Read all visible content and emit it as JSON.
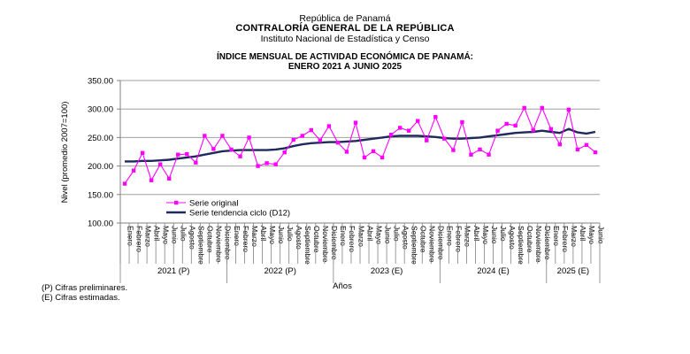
{
  "header": {
    "line1": "República de Panamá",
    "line2": "CONTRALORÍA GENERAL DE LA REPÚBLICA",
    "line3": "Instituto Nacional de Estadística y Censo",
    "title1": "ÍNDICE MENSUAL DE ACTIVIDAD ECONÓMICA DE PANAMÁ:",
    "title2": "ENERO 2021 A JUNIO 2025"
  },
  "notes": {
    "p": "(P) Cifras preliminares.",
    "e": "(E) Cifras estimadas."
  },
  "colors": {
    "original": "#FF00FF",
    "trend": "#1F2A5C",
    "grid": "#A0A0A0",
    "axis": "#808080"
  },
  "chart_data": {
    "type": "line",
    "title": "ÍNDICE MENSUAL DE ACTIVIDAD ECONÓMICA DE PANAMÁ: ENERO 2021 A JUNIO 2025",
    "xlabel": "Años",
    "ylabel": "Nivel (promedio 2007=100)",
    "ylim": [
      100,
      350
    ],
    "yticks": [
      "100.00",
      "150.00",
      "200.00",
      "250.00",
      "300.00",
      "350.00"
    ],
    "grid": true,
    "legend_position": "inside-lower-left",
    "month_labels": [
      "Enero",
      "Febrero",
      "Marzo",
      "Abril",
      "Mayo",
      "Junio",
      "Julio",
      "Agosto",
      "Septiembre",
      "Octubre",
      "Noviembre",
      "Diciembre"
    ],
    "year_groups": [
      {
        "label": "2021 (P)",
        "months": 12
      },
      {
        "label": "2022 (P)",
        "months": 12
      },
      {
        "label": "2023 (E)",
        "months": 12
      },
      {
        "label": "2024 (E)",
        "months": 12
      },
      {
        "label": "2025 (E)",
        "months": 6
      }
    ],
    "series": [
      {
        "name": "Serie original",
        "values": [
          169,
          192,
          223,
          175,
          203,
          178,
          220,
          221,
          206,
          253,
          230,
          253,
          229,
          217,
          250,
          200,
          205,
          203,
          224,
          246,
          253,
          263,
          245,
          270,
          241,
          225,
          276,
          215,
          226,
          215,
          255,
          267,
          262,
          279,
          245,
          286,
          248,
          228,
          277,
          220,
          229,
          220,
          262,
          274,
          271,
          302,
          263,
          302,
          265,
          238,
          299,
          229,
          237,
          224
        ]
      },
      {
        "name": "Serie tendencia ciclo (D12)",
        "values": [
          208,
          208,
          209,
          209,
          210,
          211,
          213,
          215,
          217,
          220,
          223,
          226,
          227,
          228,
          228,
          228,
          228,
          229,
          231,
          235,
          238,
          240,
          241,
          242,
          242,
          243,
          244,
          246,
          248,
          250,
          252,
          253,
          253,
          253,
          252,
          251,
          249,
          248,
          248,
          249,
          250,
          252,
          254,
          256,
          258,
          259,
          260,
          262,
          260,
          258,
          265,
          259,
          257,
          260
        ]
      }
    ]
  }
}
